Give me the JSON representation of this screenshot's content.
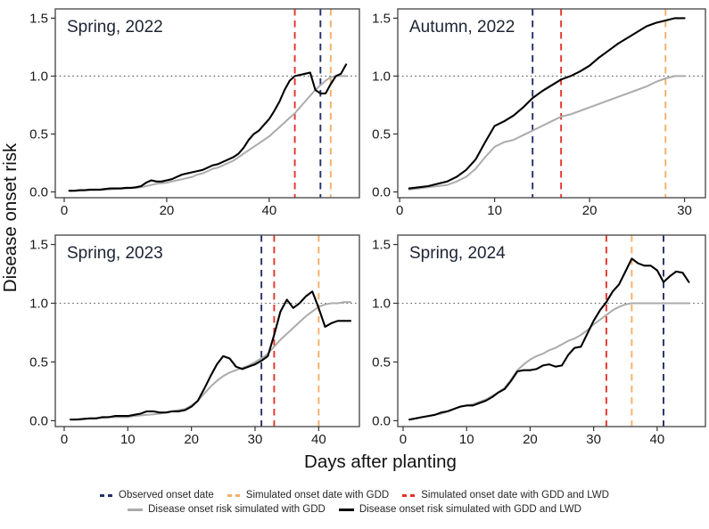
{
  "axes": {
    "x_label": "Days after planting",
    "y_label": "Disease onset risk"
  },
  "colors": {
    "observed": "#233068",
    "simulated_gdd": "#f6ae67",
    "simulated_gdd_lwd": "#e5332a",
    "risk_gdd": "#ababab",
    "risk_gdd_lwd": "#000000",
    "threshold_line": "#5c5c5c",
    "panel_border": "#4f4f4f",
    "tick_text": "#1a1a1a",
    "title_text": "#1c2333"
  },
  "legend": {
    "rows": [
      [
        {
          "label": "Observed onset date",
          "color_key": "observed",
          "dashed": true
        },
        {
          "label": "Simulated onset date with GDD",
          "color_key": "simulated_gdd",
          "dashed": true
        },
        {
          "label": "Simulated onset date with GDD and LWD",
          "color_key": "simulated_gdd_lwd",
          "dashed": true
        }
      ],
      [
        {
          "label": "Disease onset risk simulated with GDD",
          "color_key": "risk_gdd",
          "dashed": false
        },
        {
          "label": "Disease onset risk simulated with GDD and LWD",
          "color_key": "risk_gdd_lwd",
          "dashed": false
        }
      ]
    ]
  },
  "chart_data": [
    {
      "type": "line",
      "title": "Spring, 2022",
      "xlabel": "Days after planting",
      "ylabel": "Disease onset risk",
      "x_ticks": [
        0,
        20,
        40
      ],
      "y_ticks": [
        0.0,
        0.5,
        1.0,
        1.5
      ],
      "xlim": [
        -1.74,
        57.6
      ],
      "ylim": [
        -0.05,
        1.58
      ],
      "threshold": 1.0,
      "onset_dates": {
        "observed": 50,
        "simulated_gdd": 52,
        "simulated_gdd_lwd": 45
      },
      "x_first_day": 1,
      "series": [
        {
          "name": "Disease onset risk simulated with GDD",
          "color_key": "risk_gdd",
          "y": [
            0.01,
            0.01,
            0.01,
            0.012,
            0.015,
            0.015,
            0.018,
            0.02,
            0.022,
            0.025,
            0.028,
            0.03,
            0.032,
            0.035,
            0.04,
            0.05,
            0.06,
            0.07,
            0.075,
            0.08,
            0.09,
            0.1,
            0.11,
            0.12,
            0.13,
            0.15,
            0.16,
            0.18,
            0.2,
            0.21,
            0.23,
            0.25,
            0.27,
            0.3,
            0.33,
            0.36,
            0.39,
            0.42,
            0.45,
            0.48,
            0.52,
            0.56,
            0.6,
            0.64,
            0.68,
            0.73,
            0.78,
            0.83,
            0.88,
            0.92,
            0.96,
            0.99,
            1.0,
            1.0,
            1.0
          ]
        },
        {
          "name": "Disease onset risk simulated with GDD and LWD",
          "color_key": "risk_gdd_lwd",
          "y": [
            0.01,
            0.01,
            0.015,
            0.015,
            0.02,
            0.02,
            0.02,
            0.025,
            0.03,
            0.03,
            0.03,
            0.035,
            0.035,
            0.04,
            0.05,
            0.08,
            0.1,
            0.09,
            0.09,
            0.1,
            0.11,
            0.13,
            0.15,
            0.16,
            0.17,
            0.18,
            0.19,
            0.21,
            0.23,
            0.24,
            0.26,
            0.28,
            0.3,
            0.33,
            0.38,
            0.45,
            0.5,
            0.53,
            0.58,
            0.63,
            0.7,
            0.78,
            0.88,
            0.96,
            1.0,
            1.01,
            1.02,
            1.03,
            0.88,
            0.85,
            0.85,
            0.93,
            1.0,
            1.02,
            1.1
          ]
        }
      ]
    },
    {
      "type": "line",
      "title": "Autumn, 2022",
      "xlabel": "Days after planting",
      "ylabel": "Disease onset risk",
      "x_ticks": [
        0,
        10,
        20,
        30
      ],
      "y_ticks": [
        0.0,
        0.5,
        1.0,
        1.5
      ],
      "xlim": [
        -0.2,
        32.2
      ],
      "ylim": [
        -0.05,
        1.58
      ],
      "threshold": 1.0,
      "onset_dates": {
        "observed": 14,
        "simulated_gdd": 28,
        "simulated_gdd_lwd": 17
      },
      "x_first_day": 1,
      "series": [
        {
          "name": "Disease onset risk simulated with GDD",
          "color_key": "risk_gdd",
          "y": [
            0.02,
            0.03,
            0.04,
            0.05,
            0.06,
            0.09,
            0.13,
            0.2,
            0.3,
            0.39,
            0.43,
            0.45,
            0.49,
            0.53,
            0.57,
            0.61,
            0.65,
            0.67,
            0.7,
            0.73,
            0.76,
            0.79,
            0.82,
            0.85,
            0.88,
            0.91,
            0.95,
            0.98,
            1.0,
            1.0
          ]
        },
        {
          "name": "Disease onset risk simulated with GDD and LWD",
          "color_key": "risk_gdd_lwd",
          "y": [
            0.03,
            0.04,
            0.05,
            0.07,
            0.09,
            0.13,
            0.19,
            0.28,
            0.43,
            0.57,
            0.61,
            0.66,
            0.73,
            0.81,
            0.87,
            0.92,
            0.97,
            1.0,
            1.04,
            1.09,
            1.16,
            1.22,
            1.28,
            1.33,
            1.38,
            1.43,
            1.46,
            1.48,
            1.5,
            1.5
          ]
        }
      ]
    },
    {
      "type": "line",
      "title": "Spring, 2023",
      "xlabel": "Days after planting",
      "ylabel": "Disease onset risk",
      "x_ticks": [
        0,
        10,
        20,
        30,
        40
      ],
      "y_ticks": [
        0.0,
        0.5,
        1.0,
        1.5
      ],
      "xlim": [
        -1.4,
        46.4
      ],
      "ylim": [
        -0.05,
        1.58
      ],
      "threshold": 1.0,
      "onset_dates": {
        "observed": 31,
        "simulated_gdd": 40,
        "simulated_gdd_lwd": 33
      },
      "x_first_day": 1,
      "series": [
        {
          "name": "Disease onset risk simulated with GDD",
          "color_key": "risk_gdd",
          "y": [
            0.01,
            0.01,
            0.015,
            0.02,
            0.02,
            0.025,
            0.03,
            0.03,
            0.03,
            0.03,
            0.04,
            0.045,
            0.05,
            0.055,
            0.06,
            0.07,
            0.08,
            0.09,
            0.1,
            0.13,
            0.17,
            0.23,
            0.29,
            0.34,
            0.38,
            0.41,
            0.43,
            0.45,
            0.47,
            0.5,
            0.53,
            0.57,
            0.63,
            0.69,
            0.74,
            0.79,
            0.84,
            0.89,
            0.93,
            0.97,
            0.99,
            1.0,
            1.0,
            1.01,
            1.01
          ]
        },
        {
          "name": "Disease onset risk simulated with GDD and LWD",
          "color_key": "risk_gdd_lwd",
          "y": [
            0.01,
            0.01,
            0.015,
            0.02,
            0.02,
            0.03,
            0.03,
            0.04,
            0.04,
            0.04,
            0.05,
            0.06,
            0.08,
            0.08,
            0.07,
            0.07,
            0.08,
            0.08,
            0.09,
            0.12,
            0.17,
            0.27,
            0.38,
            0.48,
            0.55,
            0.53,
            0.46,
            0.44,
            0.46,
            0.48,
            0.51,
            0.55,
            0.73,
            0.93,
            1.03,
            0.96,
            1.0,
            1.06,
            1.1,
            0.96,
            0.8,
            0.83,
            0.85,
            0.85,
            0.85
          ]
        }
      ]
    },
    {
      "type": "line",
      "title": "Spring, 2024",
      "xlabel": "Days after planting",
      "ylabel": "Disease onset risk",
      "x_ticks": [
        0,
        10,
        20,
        30,
        40
      ],
      "y_ticks": [
        0.0,
        0.5,
        1.0,
        1.5
      ],
      "xlim": [
        -0.84,
        47.6
      ],
      "ylim": [
        -0.05,
        1.58
      ],
      "threshold": 1.0,
      "onset_dates": {
        "observed": 41,
        "simulated_gdd": 36,
        "simulated_gdd_lwd": 32
      },
      "x_first_day": 1,
      "series": [
        {
          "name": "Disease onset risk simulated with GDD",
          "color_key": "risk_gdd",
          "y": [
            0.01,
            0.02,
            0.03,
            0.04,
            0.05,
            0.06,
            0.08,
            0.1,
            0.12,
            0.13,
            0.14,
            0.16,
            0.18,
            0.21,
            0.24,
            0.28,
            0.35,
            0.43,
            0.48,
            0.52,
            0.55,
            0.57,
            0.6,
            0.62,
            0.65,
            0.68,
            0.7,
            0.73,
            0.77,
            0.82,
            0.86,
            0.9,
            0.94,
            0.97,
            0.99,
            1.0,
            1.0,
            1.0,
            1.0,
            1.0,
            1.0,
            1.0,
            1.0,
            1.0,
            1.0
          ]
        },
        {
          "name": "Disease onset risk simulated with GDD and LWD",
          "color_key": "risk_gdd_lwd",
          "y": [
            0.01,
            0.02,
            0.03,
            0.04,
            0.05,
            0.07,
            0.08,
            0.1,
            0.12,
            0.13,
            0.13,
            0.15,
            0.17,
            0.2,
            0.24,
            0.27,
            0.34,
            0.42,
            0.43,
            0.43,
            0.44,
            0.47,
            0.48,
            0.46,
            0.47,
            0.56,
            0.62,
            0.63,
            0.74,
            0.85,
            0.94,
            1.01,
            1.1,
            1.16,
            1.27,
            1.38,
            1.34,
            1.32,
            1.32,
            1.28,
            1.18,
            1.23,
            1.27,
            1.26,
            1.18
          ]
        }
      ]
    }
  ]
}
